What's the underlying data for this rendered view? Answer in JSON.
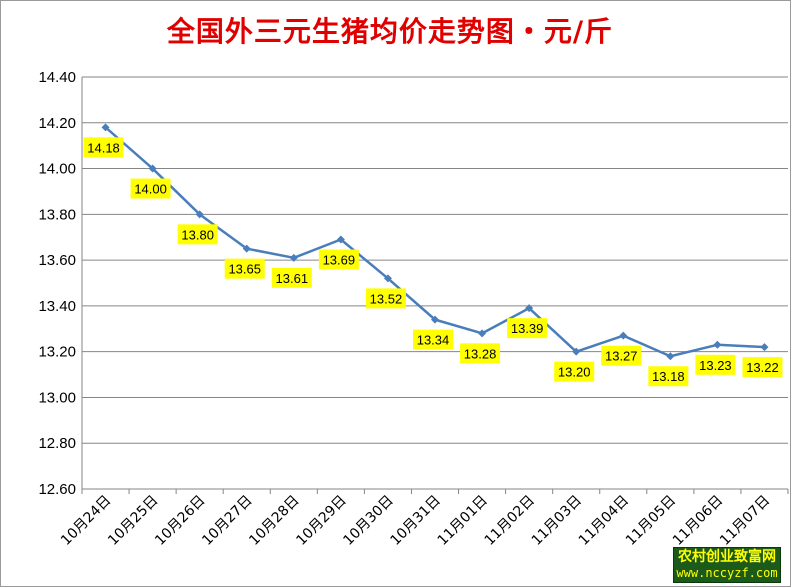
{
  "colors": {
    "title": "#e00000",
    "line": "#4a7ebb",
    "label_bg": "#ffff00",
    "grid": "#868686",
    "watermark_bg": "#1c5a1c",
    "watermark_text": "#ffff00"
  },
  "watermark": {
    "line1": "农村创业致富网",
    "line2": "www.nccyzf.com"
  },
  "chart_data": {
    "type": "line",
    "title": "全国外三元生猪均价走势图・元/斤",
    "xlabel": "",
    "ylabel": "",
    "ylim": [
      12.6,
      14.4
    ],
    "y_ticks": [
      "12.60",
      "12.80",
      "13.00",
      "13.20",
      "13.40",
      "13.60",
      "13.80",
      "14.00",
      "14.20",
      "14.40"
    ],
    "categories": [
      "10月24日",
      "10月25日",
      "10月26日",
      "10月27日",
      "10月28日",
      "10月29日",
      "10月30日",
      "10月31日",
      "11月01日",
      "11月02日",
      "11月03日",
      "11月04日",
      "11月05日",
      "11月06日",
      "11月07日"
    ],
    "values": [
      14.18,
      14.0,
      13.8,
      13.65,
      13.61,
      13.69,
      13.52,
      13.34,
      13.28,
      13.39,
      13.2,
      13.27,
      13.18,
      13.23,
      13.22
    ],
    "data_labels": [
      "14.18",
      "14.00",
      "13.80",
      "13.65",
      "13.61",
      "13.69",
      "13.52",
      "13.34",
      "13.28",
      "13.39",
      "13.20",
      "13.27",
      "13.18",
      "13.23",
      "13.22"
    ],
    "grid": true,
    "legend": "none"
  }
}
